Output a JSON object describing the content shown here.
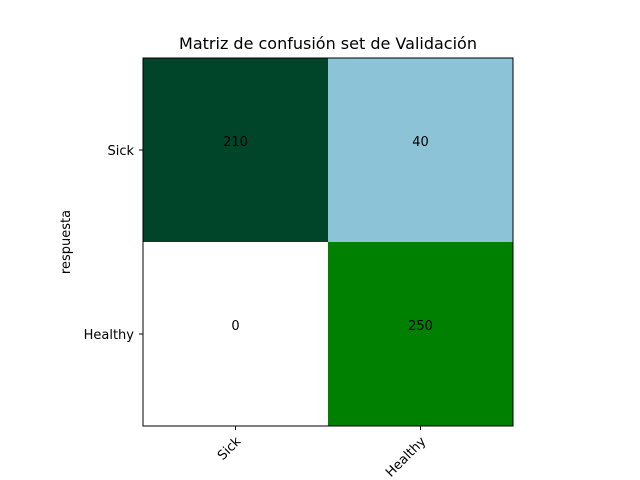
{
  "chart_data": {
    "type": "heatmap",
    "title": "Matriz de confusión set de Validación",
    "xlabel": "",
    "ylabel": "respuesta",
    "x_categories": [
      "Sick",
      "Healthy"
    ],
    "y_categories": [
      "Sick",
      "Healthy"
    ],
    "matrix": [
      [
        210,
        40
      ],
      [
        0,
        250
      ]
    ],
    "cell_colors": [
      [
        "#004529",
        "#8cc3d7"
      ],
      [
        "#ffffff",
        "#008000"
      ]
    ],
    "x_tick_rotation_deg": 45,
    "grid": false,
    "legend": "none"
  }
}
